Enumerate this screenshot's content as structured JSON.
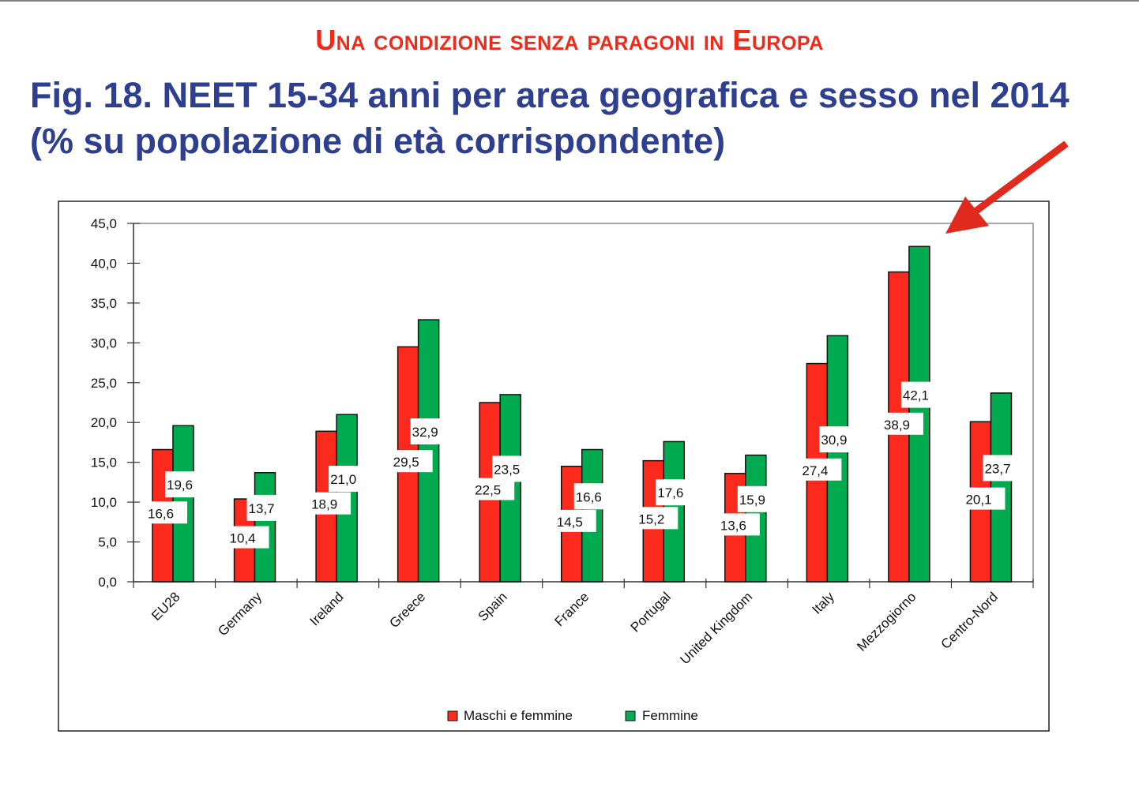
{
  "header": {
    "subtitle": "Una condizione senza paragoni in Europa",
    "title": "Fig. 18. NEET 15-34 anni per area geografica e sesso nel 2014 (% su popolazione di età corrispondente)"
  },
  "colors": {
    "maschi_e_femmine": "#fc2a1c",
    "femmine": "#00aa4f",
    "subtitle": "#ee2a1a",
    "title": "#2e3f8f",
    "arrow": "#e02a1e"
  },
  "annotation": {
    "type": "arrow",
    "points_to": "Mezzogiorno"
  },
  "chart_data": {
    "type": "bar",
    "title": "NEET 15-34 anni per area geografica e sesso nel 2014 (% su popolazione di età corrispondente)",
    "xlabel": "",
    "ylabel": "",
    "ylim": [
      0,
      45
    ],
    "yticks": [
      "0,0",
      "5,0",
      "10,0",
      "15,0",
      "20,0",
      "25,0",
      "30,0",
      "35,0",
      "40,0",
      "45,0"
    ],
    "ytick_values": [
      0,
      5,
      10,
      15,
      20,
      25,
      30,
      35,
      40,
      45
    ],
    "grid": false,
    "legend_position": "bottom",
    "categories": [
      "EU28",
      "Germany",
      "Ireland",
      "Greece",
      "Spain",
      "France",
      "Portugal",
      "United Kingdom",
      "Italy",
      "Mezzogiorno",
      "Centro-Nord"
    ],
    "series": [
      {
        "name": "Maschi e femmine",
        "values": [
          16.6,
          10.4,
          18.9,
          29.5,
          22.5,
          14.5,
          15.2,
          13.6,
          27.4,
          38.9,
          20.1
        ],
        "labels": [
          "16,6",
          "10,4",
          "18,9",
          "29,5",
          "22,5",
          "14,5",
          "15,2",
          "13,6",
          "27,4",
          "38,9",
          "20,1"
        ]
      },
      {
        "name": "Femmine",
        "values": [
          19.6,
          13.7,
          21.0,
          32.9,
          23.5,
          16.6,
          17.6,
          15.9,
          30.9,
          42.1,
          23.7
        ],
        "labels": [
          "19,6",
          "13,7",
          "21,0",
          "32,9",
          "23,5",
          "16,6",
          "17,6",
          "15,9",
          "30,9",
          "42,1",
          "23,7"
        ]
      }
    ]
  }
}
